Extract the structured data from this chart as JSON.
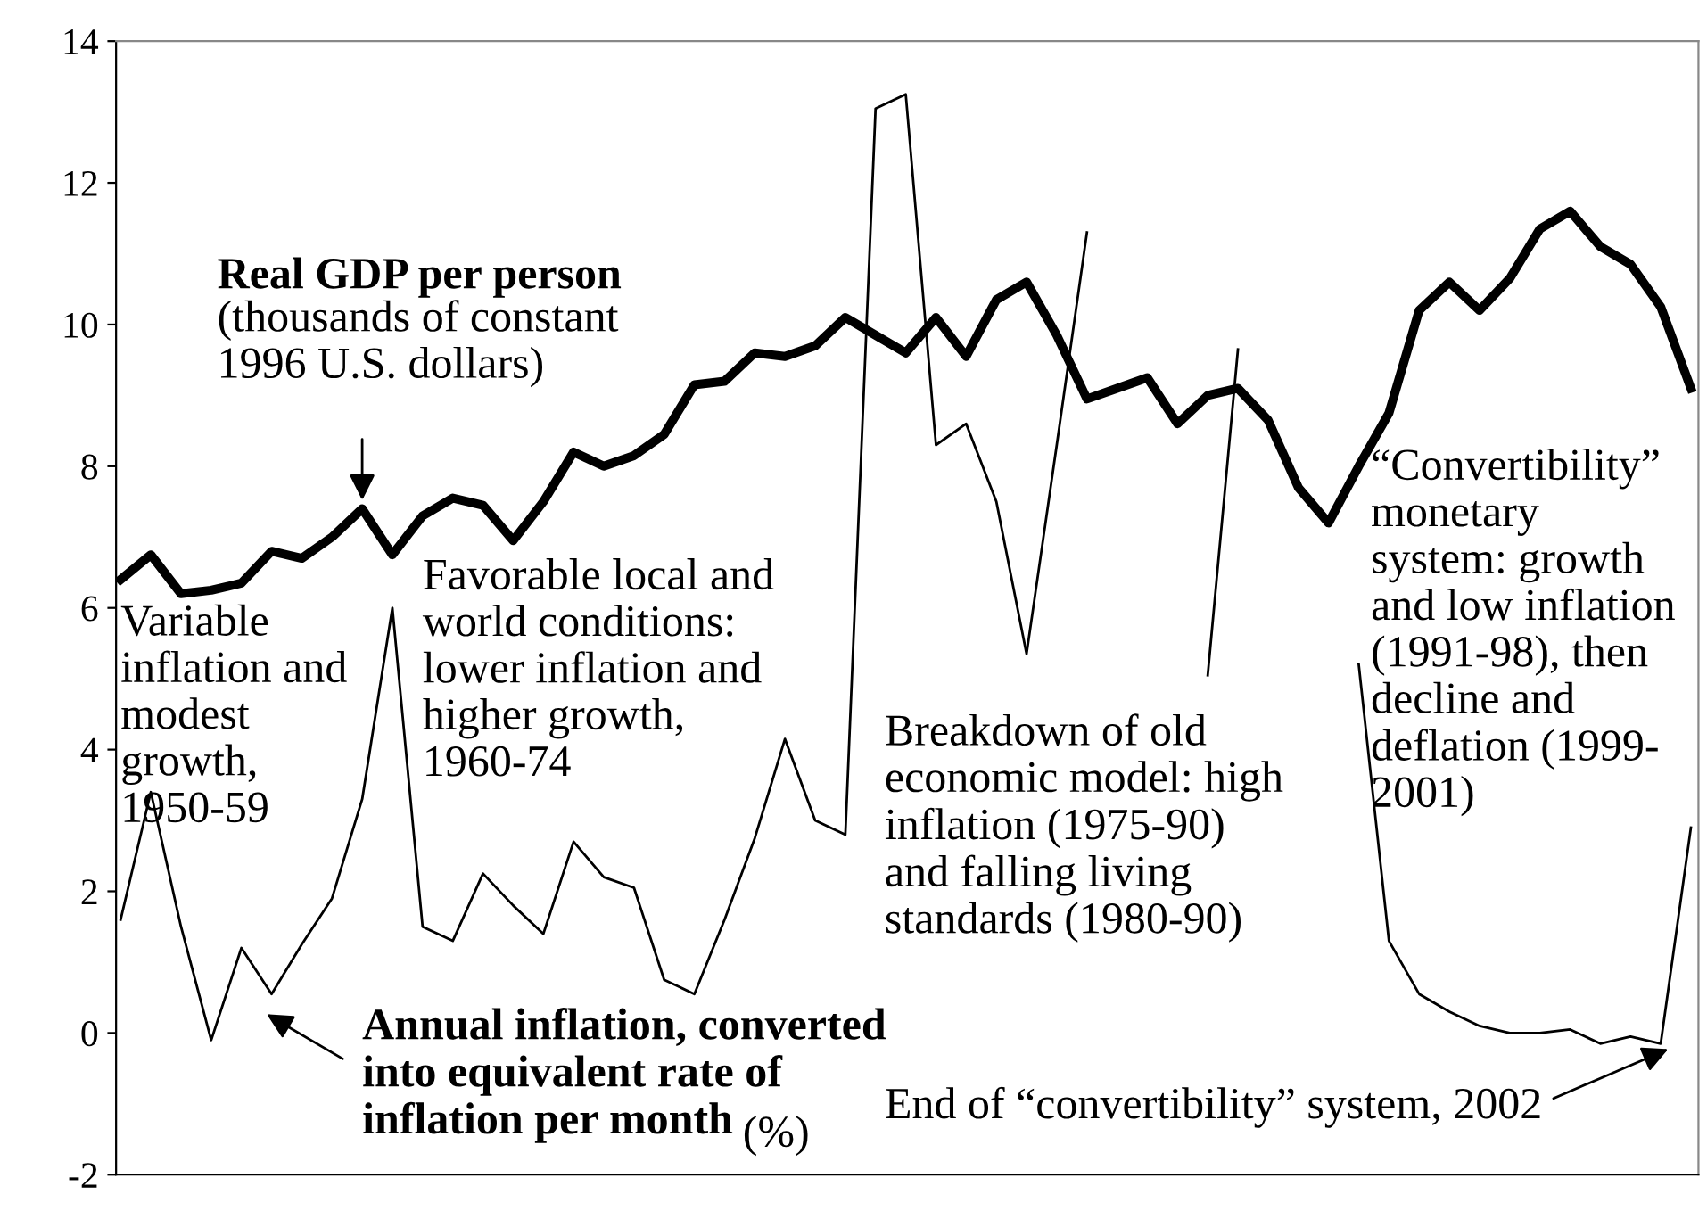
{
  "chart_data": {
    "type": "line",
    "ylim": [
      -2,
      14
    ],
    "yticks": [
      -2,
      0,
      2,
      4,
      6,
      8,
      10,
      12,
      14
    ],
    "tick_labels": "y",
    "categories": [
      null,
      null,
      null,
      null,
      null,
      null,
      null,
      null,
      null,
      null,
      null,
      null,
      null,
      null,
      null,
      null,
      null,
      null,
      null,
      null,
      null,
      null,
      null,
      null,
      null,
      null,
      null,
      null,
      null,
      null,
      null,
      null,
      null,
      null,
      null,
      null,
      null,
      null,
      null,
      null,
      null,
      null,
      null,
      null,
      null,
      null,
      null,
      null,
      null,
      null,
      null,
      null,
      null
    ],
    "series": [
      {
        "name": "Real GDP per person",
        "color": "#000000",
        "values": [
          6.4,
          6.75,
          6.2,
          6.25,
          6.35,
          6.8,
          6.7,
          7.0,
          7.4,
          6.75,
          7.3,
          7.55,
          7.45,
          6.95,
          7.5,
          8.2,
          8.0,
          8.15,
          8.45,
          9.15,
          9.2,
          9.6,
          9.55,
          9.7,
          10.1,
          9.85,
          9.6,
          10.1,
          9.55,
          10.35,
          10.6,
          9.85,
          8.95,
          9.1,
          9.25,
          8.6,
          9.0,
          9.1,
          8.65,
          7.7,
          7.2,
          8.0,
          8.75,
          10.2,
          10.6,
          10.2,
          10.65,
          11.35,
          11.6,
          11.1,
          10.85,
          10.25,
          9.1
        ]
      },
      {
        "name": "Annual inflation, converted\ninto equivalent rate of\ninflation per month",
        "color": "#000000",
        "values": [
          1.6,
          3.4,
          1.5,
          -0.1,
          1.2,
          0.55,
          1.25,
          1.9,
          3.3,
          6.0,
          1.5,
          1.3,
          2.25,
          1.8,
          1.4,
          2.7,
          2.2,
          2.05,
          0.75,
          0.55,
          1.6,
          2.75,
          4.15,
          3.0,
          2.8,
          13.05,
          13.25,
          8.3,
          8.6,
          7.5,
          5.35,
          8.3,
          11.3,
          null,
          null,
          null,
          5.05,
          9.65,
          null,
          null,
          null,
          5.2,
          1.3,
          0.55,
          0.3,
          0.1,
          0.0,
          0.0,
          0.05,
          -0.15,
          -0.05,
          -0.15,
          2.9
        ]
      }
    ],
    "annotations": [
      "(thousands of constant\n1996 U.S. dollars)",
      "Variable\ninflation and\nmodest\ngrowth,\n1950-59",
      "Favorable local and\nworld conditions:\nlower inflation and\nhigher growth,\n1960-74",
      "Breakdown of old\neconomic model: high\ninflation (1975-90)\nand falling living\nstandards (1980-90)",
      "“Convertibility”\nmonetary\nsystem: growth\nand low inflation\n(1991-98), then\ndecline and\ndeflation (1999-\n2001)",
      "(%)",
      "End of “convertibility” system, 2002"
    ]
  }
}
